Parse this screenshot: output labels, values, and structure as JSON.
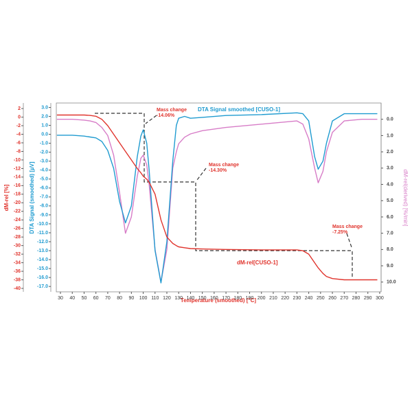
{
  "chart_data": {
    "type": "line",
    "xlabel": "Temperature (smoothed) [°C]",
    "xlim": [
      26.5,
      301.2
    ],
    "xticks": [
      30,
      40,
      50,
      60,
      70,
      80,
      90,
      100,
      110,
      120,
      130,
      140,
      150,
      160,
      170,
      180,
      190,
      200,
      210,
      220,
      230,
      240,
      250,
      260,
      270,
      280,
      290,
      300
    ],
    "ylabel": "dM-rel [%]",
    "ylim": [
      -40.8,
      3.3
    ],
    "yticks": [
      2,
      0,
      -2,
      -4,
      -6,
      -8,
      -10,
      -12,
      -14,
      -16,
      -18,
      -20,
      -22,
      -24,
      -26,
      -28,
      -30,
      -32,
      -34,
      -36,
      -38,
      -40
    ],
    "y2label": "DTA Signal (smoothed) [µV]",
    "y2lim": [
      -17.6,
      3.5
    ],
    "y2ticks": [
      {
        "value": 3,
        "label": "3.0"
      },
      {
        "value": 2,
        "label": "2.0"
      },
      {
        "value": 1,
        "label": "1.0"
      },
      {
        "value": 0,
        "label": "0.0"
      },
      {
        "value": -1,
        "label": "-1.0"
      },
      {
        "value": -2,
        "label": "-2.0"
      },
      {
        "value": -3,
        "label": "-3.0"
      },
      {
        "value": -4,
        "label": "-4.0"
      },
      {
        "value": -5,
        "label": "-5.0"
      },
      {
        "value": -6,
        "label": "-6.0"
      },
      {
        "value": -7,
        "label": "-7.0"
      },
      {
        "value": -8,
        "label": "-8.0"
      },
      {
        "value": -9,
        "label": "-9.0"
      },
      {
        "value": -10,
        "label": "-10.0"
      },
      {
        "value": -11,
        "label": "-11.0"
      },
      {
        "value": -12,
        "label": "-12.0"
      },
      {
        "value": -13,
        "label": "-13.0"
      },
      {
        "value": -14,
        "label": "-14.0"
      },
      {
        "value": -15,
        "label": "-15.0"
      },
      {
        "value": -16,
        "label": "-16.0"
      },
      {
        "value": -17,
        "label": "-17.0"
      }
    ],
    "y3label": "dM-rel(derived) [%/min]",
    "y3lim": [
      10.6,
      -1.0
    ],
    "y3ticks": [
      {
        "value": 0,
        "label": "0.0"
      },
      {
        "value": 1,
        "label": "1.0"
      },
      {
        "value": 2,
        "label": "2.0"
      },
      {
        "value": 3,
        "label": "3.0"
      },
      {
        "value": 4,
        "label": "4.0"
      },
      {
        "value": 5,
        "label": "5.0"
      },
      {
        "value": 6,
        "label": "6.0"
      },
      {
        "value": 7,
        "label": "7.0"
      },
      {
        "value": 8,
        "label": "8.0"
      },
      {
        "value": 9,
        "label": "9.0"
      },
      {
        "value": 10,
        "label": "10.0"
      }
    ],
    "x": [
      27,
      40,
      50,
      55,
      60,
      65,
      70,
      75,
      80,
      85,
      90,
      95,
      98,
      100,
      103,
      105,
      110,
      115,
      120,
      125,
      128,
      130,
      135,
      140,
      150,
      170,
      200,
      230,
      235,
      240,
      245,
      248,
      252,
      255,
      260,
      270,
      285,
      298
    ],
    "series": [
      {
        "name": "dM-rel[CUSO-1]",
        "color": "#e0332c",
        "axis": "y",
        "values": [
          0.5,
          0.5,
          0.5,
          0.4,
          0.2,
          -0.5,
          -2,
          -4,
          -6,
          -8,
          -10,
          -12,
          -13,
          -13.8,
          -14.5,
          -15.2,
          -18,
          -24,
          -28,
          -29.5,
          -30,
          -30.3,
          -30.5,
          -30.7,
          -30.8,
          -30.9,
          -31,
          -31,
          -31.2,
          -32,
          -34,
          -35.2,
          -36.5,
          -37.2,
          -37.7,
          -38,
          -38,
          -38
        ]
      },
      {
        "name": "DTA Signal smoothed [CUSO-1]",
        "color": "#1f9bd0",
        "axis": "y2",
        "values": [
          -0.1,
          -0.1,
          -0.2,
          -0.3,
          -0.4,
          -0.8,
          -1.8,
          -3.8,
          -7.5,
          -9.9,
          -8,
          -2.5,
          -0.2,
          0.5,
          -1,
          -4,
          -13,
          -16.6,
          -12,
          -3,
          1.0,
          1.8,
          2.0,
          1.8,
          1.9,
          2.1,
          2.2,
          2.4,
          2.3,
          1.5,
          -2.5,
          -3.9,
          -3,
          -1,
          1.5,
          2.3,
          2.3,
          2.3
        ]
      },
      {
        "color": "#d77cc7",
        "axis": "y3",
        "values": [
          0.0,
          0.0,
          0.05,
          0.1,
          0.2,
          0.5,
          1.0,
          2.2,
          4.5,
          7.0,
          6.0,
          3.5,
          2.4,
          2.2,
          2.8,
          4.0,
          8,
          10.0,
          8,
          3,
          2.0,
          1.5,
          1.1,
          0.9,
          0.7,
          0.5,
          0.3,
          0.1,
          0.3,
          1.2,
          3,
          3.9,
          3.2,
          2,
          0.8,
          0.1,
          0.0,
          0.0
        ]
      }
    ],
    "annotations": [
      {
        "lines": [
          "Mass change",
          "-14.06%"
        ]
      },
      {
        "lines": [
          "Mass change",
          "-14.30%"
        ]
      },
      {
        "lines": [
          "Mass change",
          "-7.25%"
        ]
      }
    ]
  }
}
